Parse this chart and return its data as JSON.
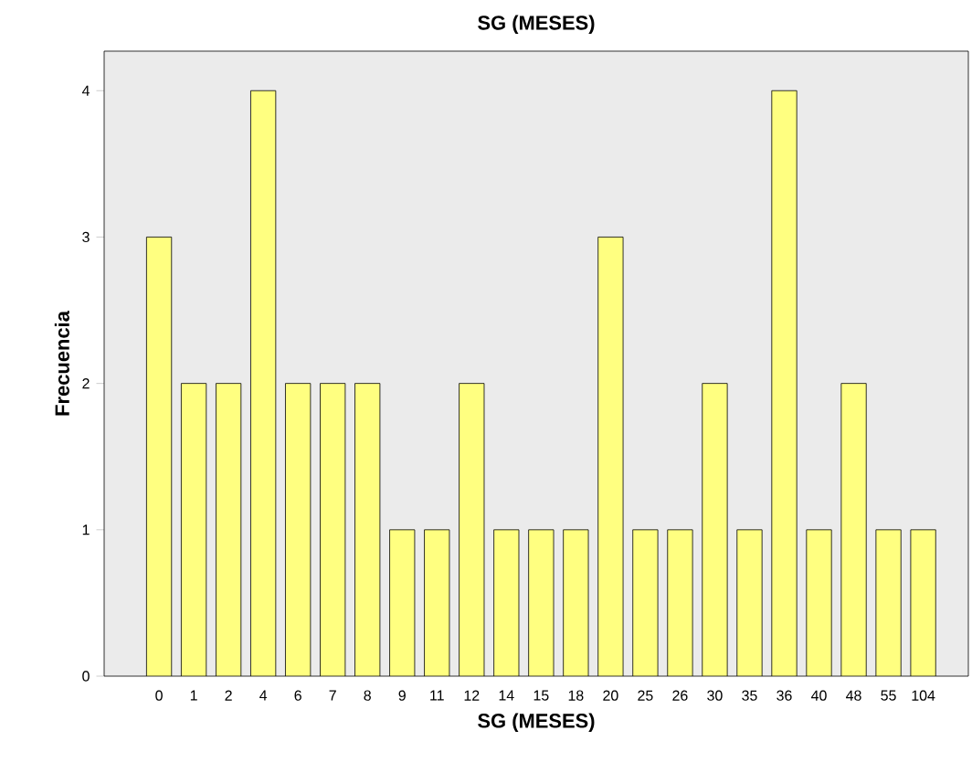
{
  "chart_data": {
    "type": "bar",
    "title": "SG (MESES)",
    "xlabel": "SG (MESES)",
    "ylabel": "Frecuencia",
    "categories": [
      "0",
      "1",
      "2",
      "4",
      "6",
      "7",
      "8",
      "9",
      "11",
      "12",
      "14",
      "15",
      "18",
      "20",
      "25",
      "26",
      "30",
      "35",
      "36",
      "40",
      "48",
      "55",
      "104"
    ],
    "values": [
      3,
      2,
      2,
      4,
      2,
      2,
      2,
      1,
      1,
      2,
      1,
      1,
      1,
      3,
      1,
      1,
      2,
      1,
      4,
      1,
      2,
      1,
      1
    ],
    "color": "#ffff80",
    "ylim": [
      0,
      4.27
    ],
    "yticks": [
      0,
      1,
      2,
      3,
      4
    ]
  }
}
